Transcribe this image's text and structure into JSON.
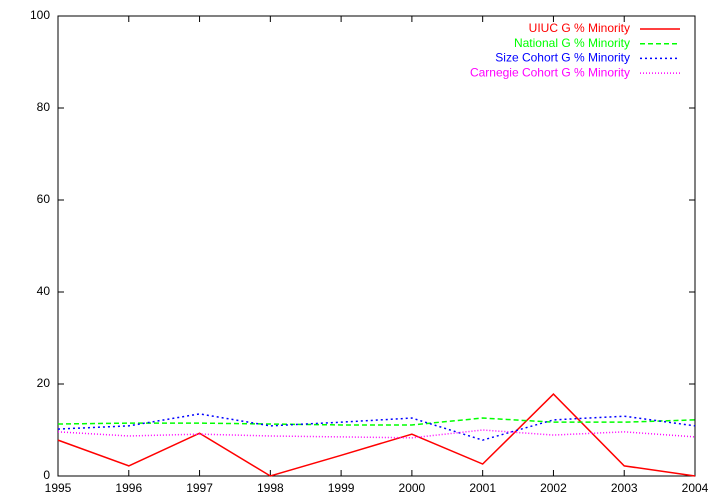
{
  "chart_data": {
    "type": "line",
    "x": [
      1995,
      1996,
      1997,
      1998,
      1999,
      2000,
      2001,
      2002,
      2003,
      2004
    ],
    "xlim": [
      1995,
      2004
    ],
    "xticks": [
      1995,
      1996,
      1997,
      1998,
      1999,
      2000,
      2001,
      2002,
      2003,
      2004
    ],
    "ylim": [
      0,
      100
    ],
    "yticks": [
      0,
      20,
      40,
      60,
      80,
      100
    ],
    "grid": false,
    "legend": "top-right",
    "series": [
      {
        "name": "UIUC G % Minority",
        "color": "#ff0000",
        "values": [
          7.8,
          2.2,
          9.3,
          0,
          4.5,
          9.1,
          2.6,
          17.8,
          2.2,
          0
        ]
      },
      {
        "name": "National G % Minority",
        "color": "#00ff00",
        "values": [
          11.3,
          11.5,
          11.5,
          11.3,
          11.1,
          11.1,
          12.6,
          11.7,
          11.7,
          12.2
        ]
      },
      {
        "name": "Size Cohort G % Minority",
        "color": "#0000ff",
        "values": [
          10.2,
          10.9,
          13.5,
          10.9,
          11.7,
          12.6,
          7.8,
          12.2,
          13.0,
          10.9
        ]
      },
      {
        "name": "Carnegie Cohort G % Minority",
        "color": "#ff00ff",
        "values": [
          9.6,
          8.7,
          9.1,
          8.7,
          8.5,
          8.3,
          10.0,
          8.9,
          9.6,
          8.5
        ]
      }
    ]
  }
}
